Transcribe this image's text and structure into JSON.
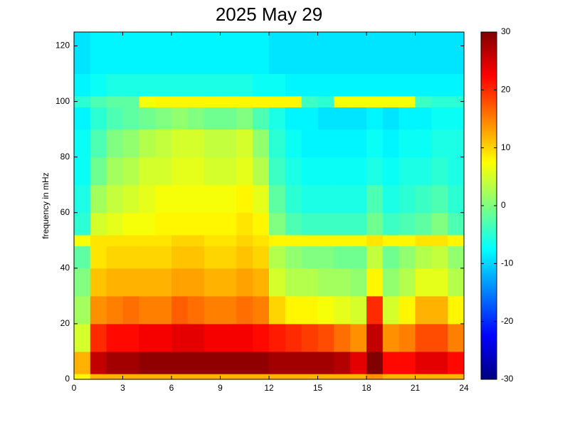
{
  "chart_data": {
    "type": "heatmap",
    "title": "2025 May 29",
    "y_label": "frequency in mHz",
    "colormap": "jet",
    "x": [
      0,
      1,
      2,
      3,
      4,
      5,
      6,
      7,
      8,
      9,
      10,
      11,
      12,
      13,
      14,
      15,
      16,
      17,
      18,
      19,
      20,
      21,
      22,
      23,
      24
    ],
    "y": [
      0,
      2,
      10,
      20,
      30,
      40,
      48,
      52,
      60,
      70,
      80,
      90,
      98,
      102,
      110,
      125
    ],
    "z": [
      [
        8,
        12,
        12,
        12,
        12,
        12,
        12,
        12,
        12,
        12,
        12,
        12,
        12,
        12,
        12,
        12,
        12,
        12,
        14,
        12,
        12,
        12,
        12,
        12
      ],
      [
        12,
        26,
        28,
        28,
        29,
        29,
        29,
        29,
        29,
        29,
        29,
        29,
        28,
        28,
        28,
        28,
        27,
        24,
        30,
        22,
        22,
        24,
        24,
        22
      ],
      [
        5,
        20,
        22,
        22,
        23,
        23,
        24,
        24,
        23,
        23,
        23,
        22,
        21,
        20,
        19,
        18,
        16,
        14,
        26,
        14,
        15,
        18,
        18,
        15
      ],
      [
        2,
        14,
        15,
        16,
        15,
        15,
        17,
        16,
        15,
        15,
        16,
        15,
        10,
        8,
        8,
        7,
        6,
        5,
        20,
        5,
        8,
        12,
        12,
        8
      ],
      [
        0,
        11,
        12,
        12,
        12,
        12,
        13,
        13,
        12,
        12,
        13,
        12,
        5,
        3,
        3,
        2,
        2,
        1,
        8,
        1,
        3,
        6,
        6,
        3
      ],
      [
        -2,
        9,
        10,
        10,
        10,
        10,
        11,
        11,
        10,
        10,
        11,
        10,
        3,
        1,
        0,
        0,
        -1,
        -1,
        4,
        -1,
        1,
        3,
        4,
        1
      ],
      [
        7,
        9,
        9,
        9,
        9,
        9,
        10,
        10,
        9,
        9,
        10,
        9,
        8,
        8,
        8,
        8,
        8,
        8,
        9,
        8,
        8,
        9,
        9,
        8
      ],
      [
        -5,
        5,
        6,
        7,
        7,
        8,
        8,
        8,
        8,
        8,
        9,
        8,
        0,
        -3,
        -4,
        -4,
        -4,
        -4,
        -1,
        -4,
        -3,
        -2,
        0,
        -3
      ],
      [
        -6,
        2,
        4,
        5,
        6,
        7,
        7,
        7,
        7,
        7,
        8,
        6,
        -2,
        -5,
        -6,
        -6,
        -6,
        -6,
        -3,
        -6,
        -5,
        -4,
        -3,
        -5
      ],
      [
        -7,
        -1,
        2,
        3,
        5,
        5,
        6,
        6,
        5,
        5,
        6,
        3,
        -4,
        -6,
        -7,
        -7,
        -7,
        -7,
        -6,
        -7,
        -6,
        -6,
        -5,
        -6
      ],
      [
        -7,
        -3,
        0,
        1,
        3,
        4,
        5,
        5,
        4,
        4,
        5,
        1,
        -5,
        -7,
        -8,
        -8,
        -8,
        -8,
        -7,
        -8,
        -7,
        -7,
        -6,
        -6
      ],
      [
        -8,
        -5,
        -3,
        -2,
        -1,
        0,
        1,
        0,
        -1,
        -1,
        0,
        -3,
        -6,
        -8,
        -8,
        -9,
        -9,
        -9,
        -8,
        -9,
        -8,
        -8,
        -7,
        -7
      ],
      [
        -5,
        -3,
        -2,
        -2,
        7,
        8,
        8,
        8,
        8,
        8,
        8,
        8,
        8,
        8,
        -4,
        -5,
        7,
        7,
        7,
        7,
        7,
        -4,
        -5,
        -5
      ],
      [
        -8,
        -7,
        -6,
        -6,
        -6,
        -6,
        -6,
        -6,
        -6,
        -6,
        -6,
        -7,
        -7,
        -8,
        -8,
        -8,
        -8,
        -8,
        -8,
        -8,
        -8,
        -8,
        -8,
        -8
      ],
      [
        -9,
        -8,
        -8,
        -8,
        -8,
        -8,
        -8,
        -8,
        -8,
        -8,
        -8,
        -8,
        -9,
        -9,
        -9,
        -9,
        -9,
        -9,
        -9,
        -9,
        -9,
        -9,
        -9,
        -9
      ]
    ],
    "xlim": [
      0,
      24
    ],
    "xticks": [
      0,
      3,
      6,
      9,
      12,
      15,
      18,
      21,
      24
    ],
    "ylim": [
      0,
      125
    ],
    "yticks": [
      0,
      20,
      40,
      60,
      80,
      100,
      120
    ],
    "clim": [
      -30,
      30
    ],
    "cticks": [
      -30,
      -20,
      -10,
      0,
      10,
      20,
      30
    ]
  }
}
